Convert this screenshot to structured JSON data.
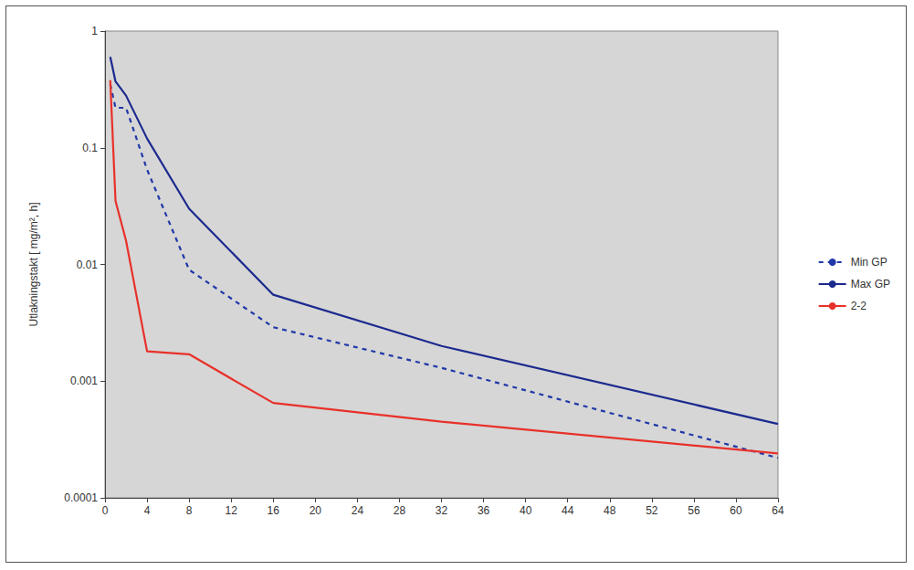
{
  "chart_data": {
    "type": "line",
    "y_label": "Utlakningstakt [ mg/m², h]",
    "log": "y",
    "grid": false,
    "legend": "right",
    "xlim": [
      0,
      64
    ],
    "xticks": [
      0,
      4,
      8,
      12,
      16,
      20,
      24,
      28,
      32,
      36,
      40,
      44,
      48,
      52,
      56,
      60,
      64
    ],
    "ylim": [
      0.0001,
      1
    ],
    "yticks": [
      0.0001,
      0.001,
      0.01,
      0.1,
      1
    ],
    "x": [
      0.5,
      1,
      2,
      4,
      8,
      16,
      32,
      64
    ],
    "series": [
      {
        "name": "Min GP",
        "color": "#2038a8",
        "line_style": "dashed",
        "marker": "none",
        "values": [
          0.35,
          0.22,
          0.22,
          0.065,
          0.009,
          0.0029,
          0.0013,
          0.00022
        ]
      },
      {
        "name": "Max GP",
        "color": "#1c2a8e",
        "line_style": "solid",
        "marker": "none",
        "values": [
          0.6,
          0.37,
          0.28,
          0.12,
          0.03,
          0.0055,
          0.002,
          0.00043
        ]
      },
      {
        "name": "2-2",
        "color": "#e8312a",
        "line_style": "solid",
        "marker": "none",
        "values": [
          0.38,
          0.035,
          0.016,
          0.0018,
          0.0017,
          0.00065,
          0.00045,
          0.00024
        ]
      }
    ]
  }
}
